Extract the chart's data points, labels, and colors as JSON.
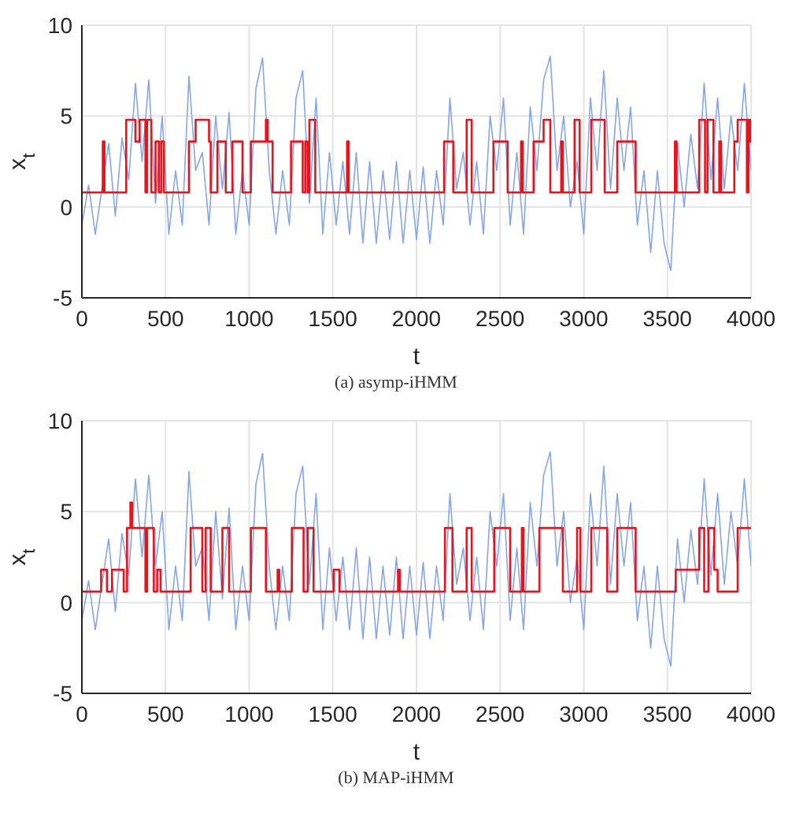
{
  "chart_data": [
    {
      "type": "line",
      "xlabel": "t",
      "ylabel": "x$_{t}$",
      "annotations": [
        "(a) asymp-iHMM"
      ],
      "xlim": [
        0,
        4000
      ],
      "xticks": [
        0,
        500,
        1000,
        1500,
        2000,
        2500,
        3000,
        3500,
        4000
      ],
      "ylim": [
        -5,
        10
      ],
      "yticks": [
        -5,
        0,
        5,
        10
      ],
      "grid": true,
      "series": [
        {
          "type": "line",
          "color": "#86a6ec",
          "x": [
            0,
            40,
            80,
            120,
            160,
            200,
            240,
            280,
            320,
            360,
            400,
            440,
            480,
            520,
            560,
            600,
            640,
            680,
            720,
            760,
            800,
            840,
            880,
            920,
            960,
            1000,
            1040,
            1080,
            1120,
            1160,
            1200,
            1240,
            1280,
            1320,
            1360,
            1400,
            1440,
            1480,
            1520,
            1560,
            1600,
            1640,
            1680,
            1720,
            1760,
            1800,
            1840,
            1880,
            1920,
            1960,
            2000,
            2040,
            2080,
            2120,
            2160,
            2200,
            2240,
            2280,
            2320,
            2360,
            2400,
            2440,
            2480,
            2520,
            2560,
            2600,
            2640,
            2680,
            2720,
            2760,
            2800,
            2840,
            2880,
            2920,
            2960,
            3000,
            3040,
            3080,
            3120,
            3160,
            3200,
            3240,
            3280,
            3320,
            3360,
            3400,
            3440,
            3480,
            3520,
            3560,
            3600,
            3640,
            3680,
            3720,
            3760,
            3800,
            3840,
            3880,
            3920,
            3960,
            4000
          ],
          "values": [
            -1,
            1.2,
            -1.5,
            1,
            3.5,
            -0.5,
            3.8,
            1.5,
            6.8,
            2.5,
            7,
            0.2,
            5,
            -1.5,
            2,
            -1,
            7.2,
            2,
            3,
            -1,
            5,
            1,
            5.2,
            -1.5,
            2,
            -1,
            6.5,
            8.2,
            2,
            -1.5,
            2,
            -1,
            6,
            7.5,
            0.2,
            6,
            -1.5,
            3,
            -1,
            2.5,
            -1.5,
            3,
            -2,
            2.5,
            -2,
            2,
            -1.8,
            2.5,
            -2,
            2,
            -1.8,
            2.2,
            -2,
            2,
            -1,
            6,
            1,
            3,
            -1,
            2.5,
            -1.5,
            5,
            2,
            6,
            -1,
            3,
            -1.5,
            5.5,
            2,
            7,
            8.3,
            2,
            5,
            0,
            2.5,
            -1.5,
            6,
            2,
            7.5,
            1,
            6,
            2,
            5.5,
            -1,
            2,
            -2.5,
            2,
            -2,
            -3.5,
            3.5,
            0,
            4,
            1,
            6.8,
            1.5,
            6,
            1,
            5,
            2,
            6.8,
            2
          ]
        },
        {
          "type": "step",
          "color": "#e8141c",
          "x": [
            0,
            125,
            135,
            265,
            320,
            345,
            380,
            390,
            415,
            440,
            460,
            475,
            490,
            640,
            680,
            760,
            770,
            810,
            860,
            900,
            960,
            1010,
            1100,
            1110,
            1140,
            1250,
            1320,
            1335,
            1350,
            1360,
            1395,
            1585,
            1595,
            2165,
            2220,
            2300,
            2330,
            2460,
            2545,
            2625,
            2635,
            2700,
            2760,
            2800,
            2865,
            2875,
            2945,
            2975,
            3045,
            3125,
            3200,
            3310,
            3545,
            3555,
            3690,
            3725,
            3740,
            3775,
            3810,
            3820,
            3900,
            3920,
            3975,
            3985,
            3995,
            4000
          ],
          "values": [
            0.8,
            3.6,
            0.8,
            4.8,
            3.6,
            4.8,
            0.8,
            4.8,
            0.8,
            3.6,
            0.8,
            3.6,
            0.8,
            3.6,
            4.8,
            3.6,
            0.8,
            3.6,
            0.8,
            3.6,
            0.8,
            3.6,
            4.8,
            3.6,
            0.8,
            3.6,
            0.8,
            3.6,
            0.8,
            4.8,
            0.8,
            3.6,
            0.8,
            3.6,
            0.8,
            4.8,
            0.8,
            3.6,
            0.8,
            3.6,
            0.8,
            3.6,
            4.8,
            0.8,
            3.6,
            0.8,
            4.8,
            0.8,
            4.8,
            0.8,
            3.6,
            0.8,
            3.6,
            0.8,
            4.8,
            0.8,
            4.8,
            0.8,
            3.6,
            0.8,
            3.6,
            4.8,
            0.8,
            4.8,
            3.6,
            3.6
          ]
        }
      ]
    },
    {
      "type": "line",
      "xlabel": "t",
      "ylabel": "x$_{t}$",
      "annotations": [
        "(b) MAP-iHMM"
      ],
      "xlim": [
        0,
        4000
      ],
      "xticks": [
        0,
        500,
        1000,
        1500,
        2000,
        2500,
        3000,
        3500,
        4000
      ],
      "ylim": [
        -5,
        10
      ],
      "yticks": [
        -5,
        0,
        5,
        10
      ],
      "grid": true,
      "series": [
        {
          "type": "line",
          "color": "#86a6ec",
          "x": [
            0,
            40,
            80,
            120,
            160,
            200,
            240,
            280,
            320,
            360,
            400,
            440,
            480,
            520,
            560,
            600,
            640,
            680,
            720,
            760,
            800,
            840,
            880,
            920,
            960,
            1000,
            1040,
            1080,
            1120,
            1160,
            1200,
            1240,
            1280,
            1320,
            1360,
            1400,
            1440,
            1480,
            1520,
            1560,
            1600,
            1640,
            1680,
            1720,
            1760,
            1800,
            1840,
            1880,
            1920,
            1960,
            2000,
            2040,
            2080,
            2120,
            2160,
            2200,
            2240,
            2280,
            2320,
            2360,
            2400,
            2440,
            2480,
            2520,
            2560,
            2600,
            2640,
            2680,
            2720,
            2760,
            2800,
            2840,
            2880,
            2920,
            2960,
            3000,
            3040,
            3080,
            3120,
            3160,
            3200,
            3240,
            3280,
            3320,
            3360,
            3400,
            3440,
            3480,
            3520,
            3560,
            3600,
            3640,
            3680,
            3720,
            3760,
            3800,
            3840,
            3880,
            3920,
            3960,
            4000
          ],
          "values": [
            -1,
            1.2,
            -1.5,
            1,
            3.5,
            -0.5,
            3.8,
            1.5,
            6.8,
            2.5,
            7,
            2,
            5,
            -1.5,
            2,
            -1,
            7.2,
            2,
            3,
            -1,
            5,
            0.2,
            5.2,
            -1.5,
            2,
            -1,
            6.5,
            8.2,
            2,
            -1.5,
            2,
            -1,
            6,
            7.5,
            1,
            6,
            -1.5,
            3,
            -1,
            2.5,
            -1.5,
            3,
            -2,
            2.5,
            -2,
            2,
            -1.8,
            2.5,
            -2,
            2,
            -1.8,
            2.2,
            -2,
            2,
            -1,
            6,
            1,
            3,
            -1,
            2.5,
            -1.5,
            5,
            2,
            6,
            -1,
            3,
            -1.5,
            5.5,
            2,
            7,
            8.3,
            2,
            5,
            0,
            2.5,
            -1.5,
            6,
            2,
            7.5,
            1,
            6,
            2,
            5.5,
            -1,
            2,
            -2.5,
            2,
            -2,
            -3.5,
            3.5,
            0,
            4,
            1,
            6.8,
            1.5,
            6,
            1,
            5,
            2,
            6.8,
            2
          ]
        },
        {
          "type": "step",
          "color": "#e8141c",
          "x": [
            0,
            115,
            150,
            180,
            250,
            270,
            290,
            300,
            380,
            390,
            430,
            450,
            470,
            650,
            720,
            740,
            770,
            840,
            880,
            1010,
            1100,
            1170,
            1180,
            1255,
            1325,
            1350,
            1385,
            1505,
            1540,
            1890,
            1900,
            2170,
            2215,
            2300,
            2330,
            2465,
            2560,
            2630,
            2640,
            2735,
            2875,
            2960,
            2980,
            3045,
            3140,
            3200,
            3310,
            3550,
            3690,
            3720,
            3745,
            3780,
            3800,
            3920,
            4000
          ],
          "values": [
            0.6,
            1.8,
            0.6,
            1.8,
            0.6,
            4.1,
            5.5,
            4.1,
            0.6,
            4.1,
            0.6,
            1.8,
            0.6,
            4.1,
            0.6,
            4.1,
            0.6,
            4.1,
            0.6,
            4.1,
            0.6,
            1.8,
            0.6,
            4.1,
            0.6,
            4.1,
            0.6,
            1.8,
            0.6,
            1.8,
            0.6,
            4.1,
            0.6,
            4.1,
            0.6,
            4.1,
            0.6,
            4.1,
            0.6,
            4.1,
            0.6,
            4.1,
            0.6,
            4.1,
            0.6,
            4.1,
            0.6,
            1.8,
            4.1,
            0.6,
            4.1,
            1.8,
            0.6,
            4.1,
            4.1
          ]
        }
      ]
    }
  ]
}
